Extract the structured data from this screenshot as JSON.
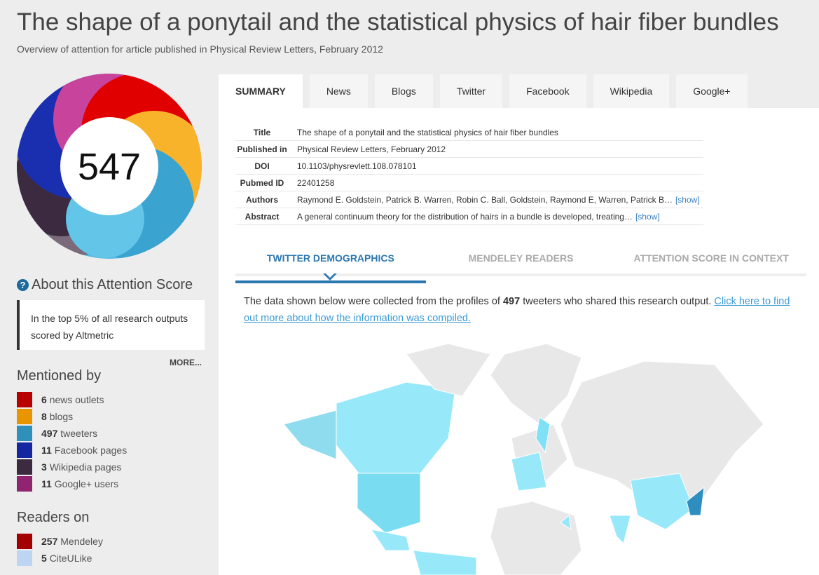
{
  "header": {
    "title": "The shape of a ponytail and the statistical physics of hair fiber bundles",
    "subtitle": "Overview of attention for article published in Physical Review Letters, February 2012"
  },
  "badge": {
    "score": "547"
  },
  "about": {
    "heading": "About this Attention Score",
    "text": "In the top 5% of all research outputs scored by Altmetric",
    "more": "MORE..."
  },
  "mentioned_by": {
    "heading": "Mentioned by",
    "items": [
      {
        "count": 6,
        "label": "news outlets",
        "color": "#b80000"
      },
      {
        "count": 8,
        "label": "blogs",
        "color": "#e89500"
      },
      {
        "count": 497,
        "label": "tweeters",
        "color": "#2f90b9"
      },
      {
        "count": 11,
        "label": "Facebook pages",
        "color": "#1427a0"
      },
      {
        "count": 3,
        "label": "Wikipedia pages",
        "color": "#3c2b40"
      },
      {
        "count": 11,
        "label": "Google+ users",
        "color": "#912470"
      }
    ]
  },
  "readers_on": {
    "heading": "Readers on",
    "items": [
      {
        "count": 257,
        "label": "Mendeley",
        "color": "#a50000"
      },
      {
        "count": 5,
        "label": "CiteULike",
        "color": "#bdd4f2"
      }
    ]
  },
  "tabs": [
    "SUMMARY",
    "News",
    "Blogs",
    "Twitter",
    "Facebook",
    "Wikipedia",
    "Google+"
  ],
  "summary": {
    "rows": [
      {
        "label": "Title",
        "value": "The shape of a ponytail and the statistical physics of hair fiber bundles"
      },
      {
        "label": "Published in",
        "value": "Physical Review Letters, February 2012"
      },
      {
        "label": "DOI",
        "value": "10.1103/physrevlett.108.078101"
      },
      {
        "label": "Pubmed ID",
        "value": "22401258"
      },
      {
        "label": "Authors",
        "value": "Raymond E. Goldstein, Patrick B. Warren, Robin C. Ball, Goldstein, Raymond E, Warren, Patrick B…",
        "link": "[show]"
      },
      {
        "label": "Abstract",
        "value": "A general continuum theory for the distribution of hairs in a bundle is developed, treating…",
        "link": "[show]"
      }
    ]
  },
  "subtabs": [
    "TWITTER DEMOGRAPHICS",
    "MENDELEY READERS",
    "ATTENTION SCORE IN CONTEXT"
  ],
  "demographics": {
    "before": "The data shown below were collected from the profiles of",
    "count": 497,
    "after": "tweeters who shared this research output.",
    "link": "Click here to find out more about how the information was compiled."
  }
}
